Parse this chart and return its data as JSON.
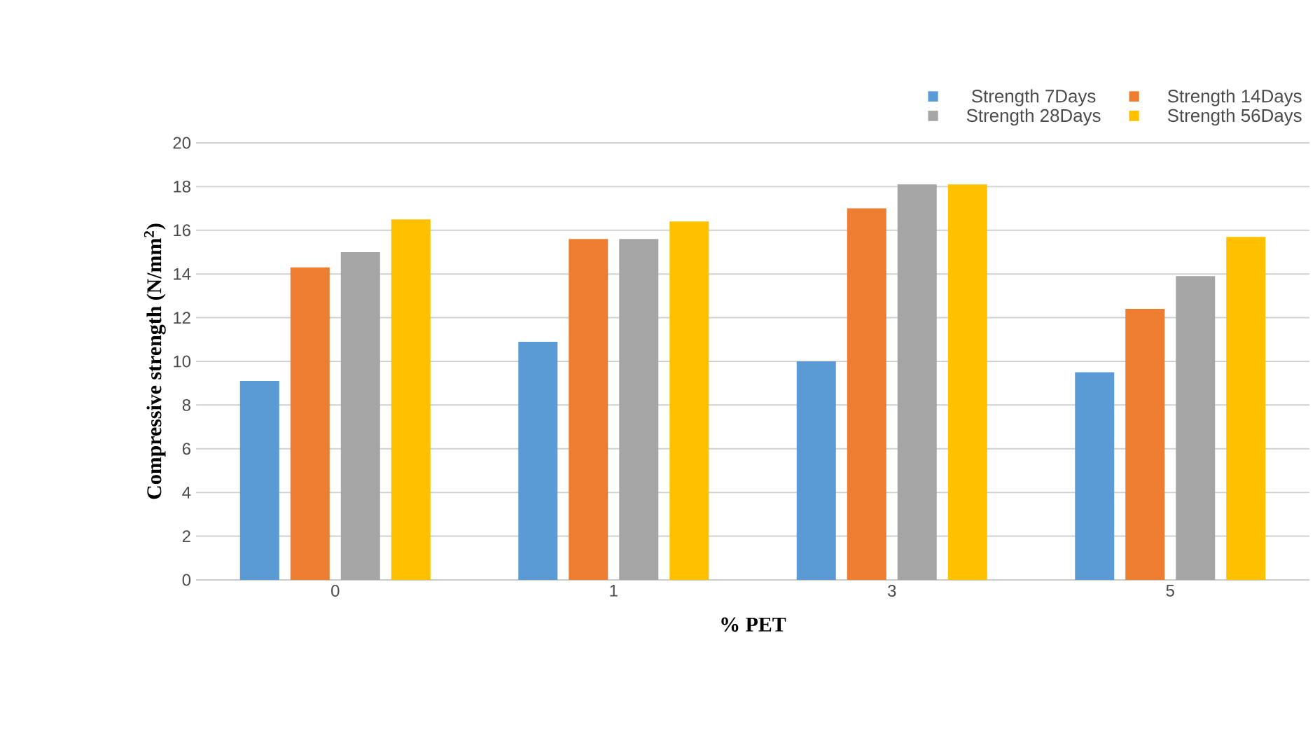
{
  "chart_data": {
    "type": "bar",
    "xlabel": "% PET",
    "ylabel": "Compressive strength (N/mm$^{2}$)",
    "categories": [
      "0",
      "1",
      "3",
      "5"
    ],
    "series": [
      {
        "name": "Strength 7Days",
        "color": "#5b9bd5",
        "values": [
          9.1,
          10.9,
          10.0,
          9.5
        ]
      },
      {
        "name": "Strength 14Days",
        "color": "#ed7d31",
        "values": [
          14.3,
          15.6,
          17.0,
          12.4
        ]
      },
      {
        "name": "Strength 28Days",
        "color": "#a5a5a5",
        "values": [
          15.0,
          15.6,
          18.1,
          13.9
        ]
      },
      {
        "name": "Strength 56Days",
        "color": "#ffc000",
        "values": [
          16.5,
          16.4,
          18.1,
          15.7
        ]
      }
    ],
    "ylim": [
      0,
      20
    ],
    "yticks": [
      0,
      2,
      4,
      6,
      8,
      10,
      12,
      14,
      16,
      18,
      20
    ],
    "grid": "y",
    "legend": "top right"
  }
}
